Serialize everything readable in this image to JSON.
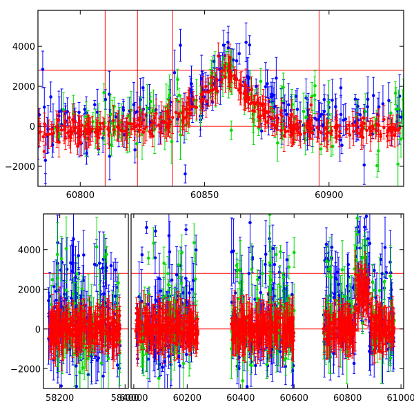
{
  "chart_data": [
    {
      "type": "scatter",
      "title": "",
      "xlabel": "",
      "ylabel": "",
      "xlim": [
        60783,
        60930
      ],
      "ylim": [
        -3000,
        5800
      ],
      "xticks": [
        60800,
        60850,
        60900
      ],
      "yticks": [
        -2000,
        0,
        2000,
        4000
      ],
      "xtick_labels": [
        "60800",
        "60850",
        "60900"
      ],
      "ytick_labels": [
        "−2000",
        "0",
        "2000",
        "4000"
      ],
      "reference_lines": [
        0,
        2800
      ],
      "vertical_markers": [
        60810,
        60823,
        60837,
        60896
      ],
      "series": [
        {
          "color": "#0000ff",
          "band": [
            [
              60783,
              0
            ],
            [
              60800,
              200
            ],
            [
              60825,
              400
            ],
            [
              60840,
              700
            ],
            [
              60850,
              1800
            ],
            [
              60860,
              3600
            ],
            [
              60868,
              2200
            ],
            [
              60880,
              700
            ],
            [
              60900,
              400
            ],
            [
              60930,
              500
            ]
          ],
          "spread": 1800,
          "count": 200
        },
        {
          "color": "#00dd00",
          "band": [
            [
              60783,
              0
            ],
            [
              60800,
              100
            ],
            [
              60825,
              200
            ],
            [
              60845,
              900
            ],
            [
              60860,
              3000
            ],
            [
              60870,
              800
            ],
            [
              60900,
              0
            ],
            [
              60930,
              100
            ]
          ],
          "spread": 1700,
          "count": 120
        },
        {
          "color": "#ff0000",
          "band": [
            [
              60783,
              -300
            ],
            [
              60800,
              -200
            ],
            [
              60825,
              -100
            ],
            [
              60840,
              300
            ],
            [
              60850,
              1600
            ],
            [
              60860,
              2800
            ],
            [
              60866,
              1800
            ],
            [
              60880,
              -100
            ],
            [
              60900,
              -150
            ],
            [
              60930,
              -250
            ]
          ],
          "spread": 650,
          "count": 360
        }
      ]
    },
    {
      "type": "scatter",
      "title": "",
      "xlabel": "",
      "ylabel": "",
      "ylim": [
        -3000,
        5800
      ],
      "yticks": [
        -2000,
        0,
        2000,
        4000
      ],
      "ytick_labels": [
        "−2000",
        "0",
        "2000",
        "4000"
      ],
      "reference_lines": [
        0,
        2800
      ],
      "segments": [
        {
          "xlim": [
            58150,
            58410
          ],
          "xticks": [
            58200,
            58400
          ],
          "xtick_labels": [
            "58200",
            "58400"
          ],
          "data_range": [
            58165,
            58385
          ]
        },
        {
          "xlim": [
            59990,
            61010
          ],
          "xticks": [
            60000,
            60200,
            60400,
            60600,
            60800,
            61000
          ],
          "xtick_labels": [
            "60000",
            "60200",
            "60400",
            "60600",
            "60800",
            "61000"
          ],
          "data_range": [
            [
              60005,
              60240
            ],
            [
              60365,
              60600
            ],
            [
              60710,
              60975
            ]
          ]
        }
      ],
      "series": [
        {
          "color": "#0000ff",
          "spread": 2600,
          "count": 520
        },
        {
          "color": "#00dd00",
          "spread": 2400,
          "count": 300
        },
        {
          "color": "#ff0000",
          "spread": 900,
          "count": 900
        }
      ],
      "rise_range": [
        60830,
        60880
      ],
      "rise_level": 1800
    }
  ]
}
